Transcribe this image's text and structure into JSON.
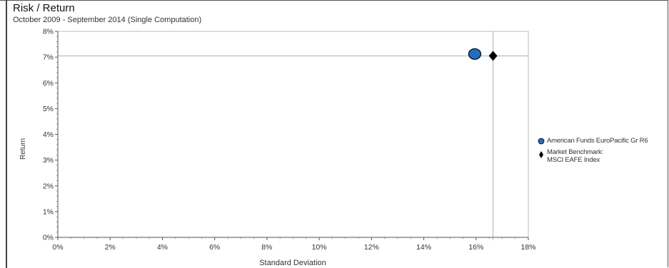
{
  "chart_data": {
    "type": "scatter",
    "title": "Risk / Return",
    "subtitle": "October 2009 - September 2014 (Single Computation)",
    "xlabel": "Standard Deviation",
    "ylabel": "Return",
    "xlim": [
      0,
      18
    ],
    "ylim": [
      0,
      8
    ],
    "x_ticks": [
      "0%",
      "2%",
      "4%",
      "6%",
      "8%",
      "10%",
      "12%",
      "14%",
      "16%",
      "18%"
    ],
    "y_ticks": [
      "0%",
      "1%",
      "2%",
      "3%",
      "4%",
      "5%",
      "6%",
      "7%",
      "8%"
    ],
    "legend_position": "right",
    "reference_lines": {
      "x": 16.65,
      "y": 7.05
    },
    "series": [
      {
        "name": "American Funds EuroPacific Gr R6",
        "marker": "circle",
        "color": "#1f6fc1",
        "points": [
          {
            "x": 15.95,
            "y": 7.12
          }
        ]
      },
      {
        "name": "Market Benchmark:\nMSCI EAFE Index",
        "marker": "diamond",
        "color": "#000000",
        "points": [
          {
            "x": 16.65,
            "y": 7.05
          }
        ]
      }
    ]
  }
}
